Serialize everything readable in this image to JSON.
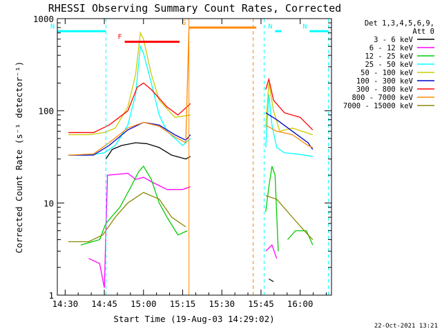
{
  "chart_data": {
    "type": "line",
    "title": "RHESSI Observing Summary Count Rates, Corrected",
    "xlabel": "Start Time (19-Aug-03 14:29:02)",
    "ylabel": "Corrected Count Rate (s⁻¹ detector⁻¹)",
    "yscale": "log",
    "xlim_minutes": [
      14.45,
      16.2
    ],
    "ylim": [
      1,
      1000
    ],
    "x_ticks": [
      "14:30",
      "14:45",
      "15:00",
      "15:15",
      "15:30",
      "15:45",
      "16:00"
    ],
    "y_ticks": [
      "1",
      "10",
      "100",
      "1000"
    ],
    "date_stamp": "22-Oct-2021 13:21",
    "legend_header": [
      "Det 1,3,4,5,6,9,",
      "Att 0"
    ],
    "series": [
      {
        "name": "3 - 6 keV",
        "color": "#000000",
        "segments": [
          [
            [
              14.52,
              null
            ],
            [
              14.76,
              30
            ],
            [
              14.8,
              38
            ],
            [
              14.86,
              42
            ],
            [
              14.95,
              45
            ],
            [
              15.02,
              44
            ],
            [
              15.1,
              40
            ],
            [
              15.18,
              33
            ],
            [
              15.27,
              30
            ],
            [
              15.3,
              32
            ]
          ],
          [
            [
              15.8,
              1.5
            ],
            [
              15.83,
              1.4
            ]
          ]
        ]
      },
      {
        "name": "6 - 12 keV",
        "color": "#ff00ff",
        "segments": [
          [
            [
              14.65,
              2.5
            ],
            [
              14.72,
              2.2
            ],
            [
              14.75,
              1.2
            ],
            [
              14.77,
              20
            ],
            [
              14.9,
              21
            ],
            [
              14.95,
              18
            ],
            [
              15.0,
              19
            ],
            [
              15.05,
              17
            ],
            [
              15.15,
              14
            ],
            [
              15.25,
              14
            ],
            [
              15.3,
              15
            ]
          ],
          [
            [
              15.78,
              3
            ],
            [
              15.82,
              3.5
            ],
            [
              15.85,
              2.5
            ]
          ]
        ]
      },
      {
        "name": "12 - 25 keV",
        "color": "#00cc00",
        "segments": [
          [
            [
              14.6,
              3.5
            ],
            [
              14.72,
              4
            ],
            [
              14.76,
              6
            ],
            [
              14.85,
              9
            ],
            [
              14.92,
              15
            ],
            [
              14.97,
              22
            ],
            [
              15.0,
              25
            ],
            [
              15.05,
              18
            ],
            [
              15.1,
              10
            ],
            [
              15.15,
              7
            ],
            [
              15.22,
              4.5
            ],
            [
              15.28,
              5
            ]
          ],
          [
            [
              15.78,
              8
            ],
            [
              15.8,
              15
            ],
            [
              15.82,
              25
            ],
            [
              15.84,
              20
            ],
            [
              15.86,
              3
            ]
          ],
          [
            [
              15.92,
              4
            ],
            [
              15.97,
              5
            ],
            [
              16.04,
              5
            ],
            [
              16.08,
              3.5
            ]
          ]
        ]
      },
      {
        "name": "25 - 50 keV",
        "color": "#00ffff",
        "segments": [
          [
            [
              14.52,
              33
            ],
            [
              14.65,
              33
            ],
            [
              14.75,
              35
            ],
            [
              14.82,
              42
            ],
            [
              14.9,
              70
            ],
            [
              14.95,
              150
            ],
            [
              14.98,
              500
            ],
            [
              15.0,
              420
            ],
            [
              15.05,
              200
            ],
            [
              15.1,
              90
            ],
            [
              15.15,
              60
            ],
            [
              15.25,
              42
            ],
            [
              15.3,
              50
            ]
          ],
          [
            [
              15.78,
              40
            ],
            [
              15.8,
              150
            ],
            [
              15.82,
              70
            ],
            [
              15.85,
              40
            ],
            [
              15.9,
              35
            ],
            [
              15.98,
              34
            ],
            [
              16.08,
              32
            ]
          ]
        ]
      },
      {
        "name": "50 - 100 keV",
        "color": "#cccc00",
        "segments": [
          [
            [
              14.52,
              55
            ],
            [
              14.65,
              55
            ],
            [
              14.75,
              58
            ],
            [
              14.82,
              65
            ],
            [
              14.9,
              110
            ],
            [
              14.95,
              250
            ],
            [
              14.98,
              700
            ],
            [
              15.0,
              600
            ],
            [
              15.05,
              250
            ],
            [
              15.1,
              130
            ],
            [
              15.2,
              85
            ],
            [
              15.3,
              90
            ]
          ],
          [
            [
              15.78,
              65
            ],
            [
              15.8,
              200
            ],
            [
              15.83,
              100
            ],
            [
              15.87,
              60
            ],
            [
              15.95,
              65
            ],
            [
              16.08,
              55
            ]
          ]
        ]
      },
      {
        "name": "100 - 300 keV",
        "color": "#0000cc",
        "segments": [
          [
            [
              14.52,
              33
            ],
            [
              14.68,
              33
            ],
            [
              14.78,
              42
            ],
            [
              14.9,
              62
            ],
            [
              15.0,
              75
            ],
            [
              15.1,
              70
            ],
            [
              15.2,
              55
            ],
            [
              15.27,
              48
            ],
            [
              15.3,
              55
            ]
          ],
          [
            [
              15.78,
              95
            ],
            [
              15.85,
              80
            ],
            [
              15.95,
              60
            ],
            [
              16.05,
              45
            ],
            [
              16.08,
              38
            ]
          ]
        ]
      },
      {
        "name": "300 - 800 keV",
        "color": "#ff0000",
        "segments": [
          [
            [
              14.52,
              58
            ],
            [
              14.68,
              58
            ],
            [
              14.78,
              70
            ],
            [
              14.9,
              100
            ],
            [
              14.96,
              180
            ],
            [
              15.0,
              200
            ],
            [
              15.05,
              170
            ],
            [
              15.15,
              110
            ],
            [
              15.22,
              90
            ],
            [
              15.3,
              120
            ]
          ],
          [
            [
              15.78,
              170
            ],
            [
              15.8,
              220
            ],
            [
              15.83,
              130
            ],
            [
              15.9,
              95
            ],
            [
              16.0,
              85
            ],
            [
              16.08,
              62
            ]
          ]
        ]
      },
      {
        "name": "800 - 7000 keV",
        "color": "#ff8800",
        "segments": [
          [
            [
              14.52,
              33
            ],
            [
              14.68,
              34
            ],
            [
              14.78,
              45
            ],
            [
              14.9,
              65
            ],
            [
              15.0,
              75
            ],
            [
              15.1,
              68
            ],
            [
              15.2,
              52
            ],
            [
              15.27,
              45
            ],
            [
              15.29,
              800
            ]
          ],
          [
            [
              15.78,
              70
            ],
            [
              15.85,
              60
            ],
            [
              15.95,
              55
            ],
            [
              16.05,
              42
            ],
            [
              16.08,
              40
            ]
          ]
        ]
      },
      {
        "name": "7000 - 15000 keV",
        "color": "#888800",
        "segments": [
          [
            [
              14.52,
              3.8
            ],
            [
              14.65,
              3.8
            ],
            [
              14.74,
              4.5
            ],
            [
              14.82,
              7
            ],
            [
              14.9,
              10
            ],
            [
              15.0,
              13
            ],
            [
              15.1,
              11
            ],
            [
              15.18,
              7
            ],
            [
              15.27,
              5.5
            ]
          ],
          [
            [
              15.78,
              12
            ],
            [
              15.85,
              11
            ],
            [
              15.95,
              7
            ],
            [
              16.05,
              4.5
            ],
            [
              16.08,
              4
            ]
          ]
        ]
      }
    ],
    "flag_bars": [
      {
        "label": "F",
        "color": "#ff0000",
        "x": [
          14.88,
          15.23
        ],
        "y": 560
      },
      {
        "label": "N",
        "color": "#00ffff",
        "x": [
          14.45,
          14.76
        ],
        "y": 730
      },
      {
        "label": "N",
        "color": "#00ffff",
        "x": [
          15.84,
          15.88
        ],
        "y": 730
      },
      {
        "label": "N",
        "color": "#00ffff",
        "x": [
          16.06,
          16.18
        ],
        "y": 730
      },
      {
        "label": "S",
        "color": "#ff8800",
        "x": [
          15.29,
          15.72
        ],
        "y": 800
      }
    ],
    "vlines": [
      {
        "x": 14.76,
        "color": "#00ffff",
        "dashed": true
      },
      {
        "x": 15.29,
        "color": "#ff8800",
        "dashed": false
      },
      {
        "x": 15.7,
        "color": "#ff8800",
        "dashed": true
      },
      {
        "x": 15.77,
        "color": "#00ffff",
        "dashed": true
      },
      {
        "x": 16.18,
        "color": "#00ffff",
        "dashed": true
      }
    ]
  }
}
